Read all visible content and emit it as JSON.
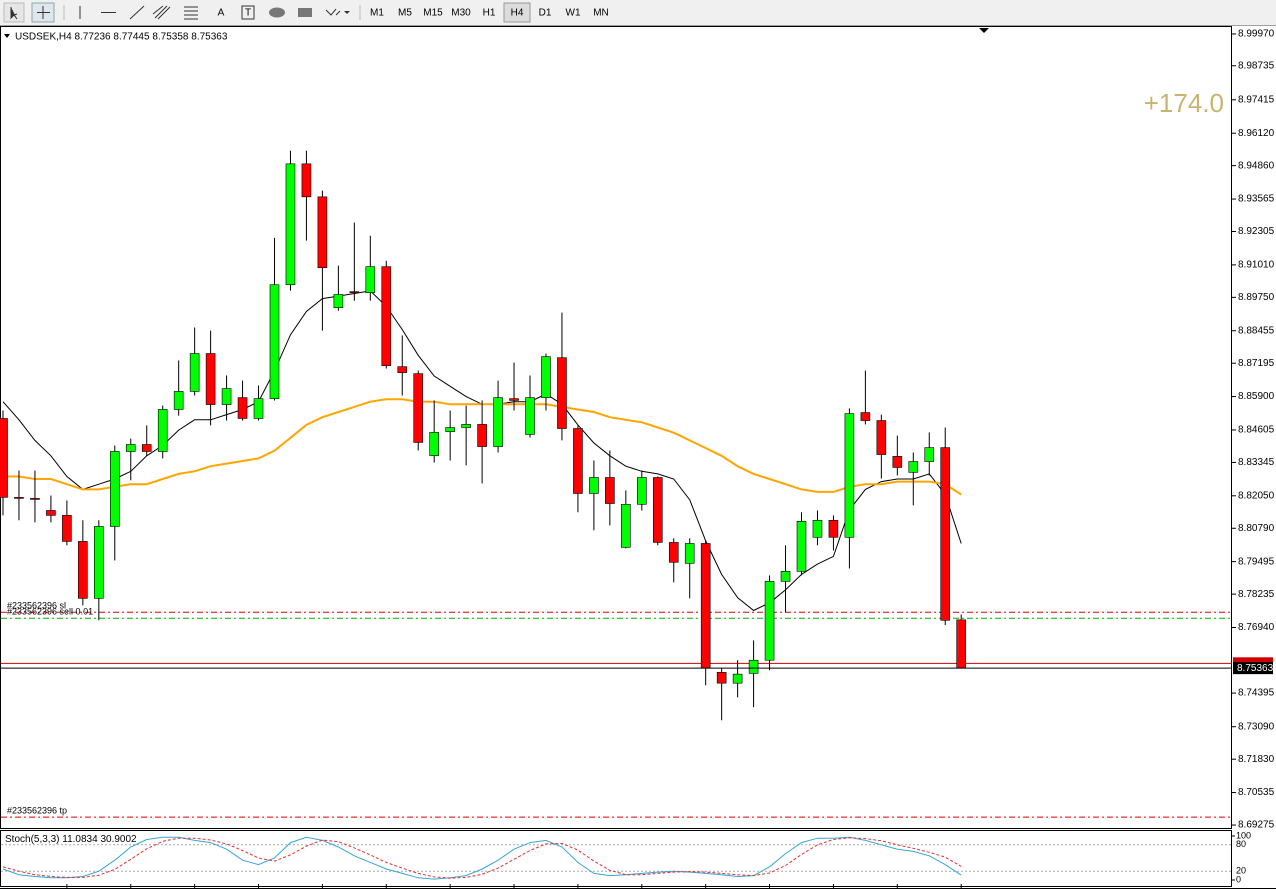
{
  "toolbar": {
    "timeframes": [
      "M1",
      "M5",
      "M15",
      "M30",
      "H1",
      "H4",
      "D1",
      "W1",
      "MN"
    ],
    "active": 5
  },
  "chart_data": {
    "type": "candlestick",
    "symbol": "USDSEK,H4",
    "up_color": "#00ff00",
    "down_color": "#ff0000",
    "open": [
      8.8505,
      8.8199,
      8.8195,
      8.8148,
      8.8129,
      8.8028,
      8.7807,
      8.8086,
      8.8377,
      8.8404,
      8.8377,
      8.854,
      8.861,
      8.8757,
      8.8559,
      8.8586,
      8.8505,
      8.8582,
      8.9024,
      8.9493,
      8.9365,
      8.8935,
      8.8997,
      8.8993,
      8.9094,
      8.8706,
      8.8679,
      8.8361,
      8.8454,
      8.847,
      8.8482,
      8.8396,
      8.8582,
      8.8443,
      8.8586,
      8.8741,
      8.8466,
      8.8214,
      8.8276,
      8.8005,
      8.8172,
      8.8276,
      8.8024,
      8.7943,
      8.802,
      8.752,
      8.7478,
      8.7516,
      8.7567,
      8.7873,
      8.7912,
      8.8044,
      8.811,
      8.8044,
      8.8528,
      8.8497,
      8.8358,
      8.8296,
      8.8338,
      8.8392,
      8.77236
    ],
    "high": [
      8.8536,
      8.8303,
      8.8303,
      8.8206,
      8.8187,
      8.811,
      8.811,
      8.84,
      8.8427,
      8.8478,
      8.8555,
      8.873,
      8.8858,
      8.8846,
      8.8672,
      8.8652,
      8.8633,
      8.9206,
      8.9544,
      8.9544,
      8.9389,
      8.9098,
      8.9265,
      8.9214,
      8.9117,
      8.8827,
      8.8691,
      8.8575,
      8.8536,
      8.8555,
      8.8575,
      8.8652,
      8.8722,
      8.8672,
      8.8757,
      8.8916,
      8.8478,
      8.8342,
      8.8381,
      8.8226,
      8.8303,
      8.828,
      8.804,
      8.804,
      8.8032,
      8.7536,
      8.7567,
      8.7644,
      8.7896,
      8.8013,
      8.8141,
      8.8148,
      8.8129,
      8.8544,
      8.8691,
      8.852,
      8.8439,
      8.8373,
      8.8451,
      8.847,
      8.77445
    ],
    "low": [
      8.8129,
      8.811,
      8.8102,
      8.8102,
      8.8013,
      8.778,
      8.7722,
      8.7954,
      8.8265,
      8.8361,
      8.835,
      8.8516,
      8.8594,
      8.8478,
      8.8497,
      8.8497,
      8.8497,
      8.8575,
      8.9001,
      8.9195,
      8.8846,
      8.8923,
      8.8962,
      8.8962,
      8.8699,
      8.8594,
      8.8381,
      8.8334,
      8.8342,
      8.8323,
      8.8253,
      8.8373,
      8.8536,
      8.8431,
      8.8536,
      8.842,
      8.8141,
      8.8071,
      8.809,
      8.8001,
      8.8148,
      8.8013,
      8.7869,
      8.7807,
      8.747,
      8.7334,
      8.7423,
      8.7385,
      8.7528,
      8.7753,
      8.7896,
      8.8013,
      8.7993,
      8.7923,
      8.8482,
      8.8272,
      8.8284,
      8.8168,
      8.8284,
      8.7703,
      8.75358
    ],
    "close": [
      8.8199,
      8.8195,
      8.8191,
      8.8129,
      8.8028,
      8.7807,
      8.8086,
      8.8377,
      8.8404,
      8.8377,
      8.854,
      8.861,
      8.8757,
      8.8559,
      8.8621,
      8.8505,
      8.8582,
      8.9024,
      8.9493,
      8.9365,
      8.909,
      8.8986,
      8.8993,
      8.9094,
      8.871,
      8.8683,
      8.8412,
      8.8451,
      8.847,
      8.8482,
      8.8396,
      8.8586,
      8.8575,
      8.8586,
      8.8745,
      8.8466,
      8.8214,
      8.8276,
      8.8175,
      8.8172,
      8.8276,
      8.8024,
      8.7947,
      8.802,
      8.7536,
      8.7478,
      8.7513,
      8.7567,
      8.7873,
      8.7912,
      8.8106,
      8.811,
      8.8044,
      8.8524,
      8.8497,
      8.8365,
      8.8315,
      8.8338,
      8.8392,
      8.7722,
      8.75363
    ],
    "moving_averages": [
      {
        "color": "#000000",
        "values": [
          8.857,
          8.85,
          8.842,
          8.836,
          8.828,
          8.823,
          8.825,
          8.827,
          8.83,
          8.836,
          8.84,
          8.846,
          8.85,
          8.85,
          8.852,
          8.854,
          8.857,
          8.869,
          8.883,
          8.892,
          8.897,
          8.898,
          8.899,
          8.9,
          8.894,
          8.885,
          8.875,
          8.867,
          8.863,
          8.859,
          8.856,
          8.856,
          8.857,
          8.857,
          8.86,
          8.856,
          8.848,
          8.841,
          8.836,
          8.832,
          8.83,
          8.829,
          8.827,
          8.819,
          8.803,
          8.79,
          8.781,
          8.776,
          8.779,
          8.784,
          8.79,
          8.794,
          8.797,
          8.815,
          8.823,
          8.826,
          8.827,
          8.827,
          8.829,
          8.821,
          8.802
        ]
      },
      {
        "color": "#ffa500",
        "values": [
          8.828,
          8.828,
          8.827,
          8.827,
          8.825,
          8.823,
          8.823,
          8.824,
          8.825,
          8.825,
          8.827,
          8.829,
          8.83,
          8.832,
          8.833,
          8.834,
          8.835,
          8.838,
          8.843,
          8.848,
          8.851,
          8.853,
          8.855,
          8.857,
          8.858,
          8.858,
          8.857,
          8.857,
          8.856,
          8.856,
          8.856,
          8.856,
          8.856,
          8.856,
          8.856,
          8.855,
          8.854,
          8.853,
          8.851,
          8.85,
          8.849,
          8.847,
          8.845,
          8.842,
          8.839,
          8.836,
          8.832,
          8.829,
          8.827,
          8.825,
          8.823,
          8.822,
          8.822,
          8.824,
          8.825,
          8.825,
          8.826,
          8.826,
          8.826,
          8.825,
          8.821
        ]
      }
    ],
    "levels": [
      {
        "label": "#233562396 sl",
        "value": 8.7753,
        "color": "#e00000",
        "style": "dashdot"
      },
      {
        "label": "#233562396 sell 0.01",
        "value": 8.773,
        "color": "#00b000",
        "style": "dashdot"
      },
      {
        "value": 8.7555,
        "color": "#d00000",
        "style": "solid"
      },
      {
        "label": "#233562396 tp",
        "value": 8.6958,
        "color": "#e00000",
        "style": "dashdot"
      }
    ],
    "profit_label": "+174.0",
    "ylim": [
      8.6916,
      9.0024
    ],
    "yticks": [
      {
        "value": 8.9997,
        "label": "8.99970"
      },
      8.98735,
      8.97415,
      {
        "value": 8.9612,
        "label": "8.96120"
      },
      {
        "value": 8.9486,
        "label": "8.94860"
      },
      8.93565,
      8.92305,
      {
        "value": 8.9101,
        "label": "8.91010"
      },
      {
        "value": 8.8975,
        "label": "8.89750"
      },
      8.88455,
      8.87195,
      {
        "value": 8.859,
        "label": "8.85900"
      },
      8.84605,
      8.83345,
      {
        "value": 8.8205,
        "label": "8.82050"
      },
      {
        "value": 8.8079,
        "label": "8.80790"
      },
      8.79495,
      8.78235,
      {
        "value": 8.7694,
        "label": "8.76940"
      },
      8.74395,
      {
        "value": 8.7309,
        "label": "8.73090"
      },
      {
        "value": 8.7183,
        "label": "8.71830"
      },
      8.70535,
      8.69275
    ],
    "indicator": {
      "name": "Stoch(5,3,3)",
      "ylim": [
        0,
        100
      ],
      "yticks": [
        100,
        80,
        20,
        0
      ],
      "series": [
        {
          "color": "#35a6d6",
          "style": "solid",
          "values": [
            25,
            12,
            8,
            5,
            5,
            8,
            20,
            45,
            75,
            92,
            97,
            97,
            90,
            85,
            70,
            45,
            35,
            50,
            85,
            97,
            90,
            75,
            55,
            40,
            25,
            15,
            5,
            2,
            5,
            10,
            25,
            45,
            70,
            85,
            90,
            75,
            40,
            15,
            10,
            12,
            15,
            18,
            20,
            18,
            15,
            12,
            8,
            10,
            30,
            60,
            85,
            95,
            95,
            97,
            90,
            80,
            70,
            65,
            55,
            35,
            11.0834
          ]
        },
        {
          "color": "#e03030",
          "style": "dashed",
          "values": [
            30,
            20,
            12,
            8,
            6,
            6,
            11,
            24,
            47,
            71,
            88,
            95,
            95,
            91,
            82,
            67,
            50,
            43,
            57,
            77,
            91,
            87,
            73,
            57,
            40,
            27,
            15,
            7,
            4,
            6,
            13,
            27,
            47,
            67,
            82,
            83,
            68,
            43,
            22,
            12,
            12,
            15,
            18,
            19,
            18,
            15,
            12,
            10,
            16,
            33,
            58,
            80,
            92,
            96,
            94,
            89,
            80,
            72,
            63,
            52,
            30.9002
          ]
        }
      ]
    }
  }
}
